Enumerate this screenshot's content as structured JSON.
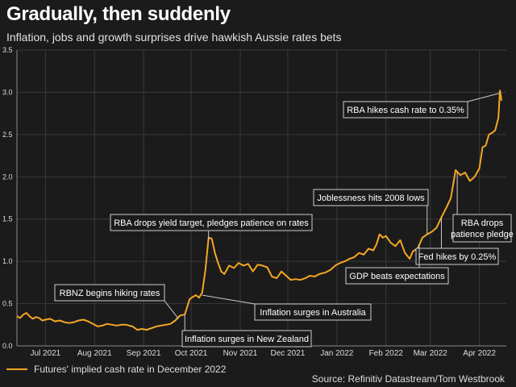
{
  "title": "Gradually, then suddenly",
  "subtitle": "Inflation, jobs and growth surprises drive hawkish Aussie rates bets",
  "legend_label": "Futures' implied cash rate in December 2022",
  "source": "Source: Refinitiv Datastream/Tom Westbrook",
  "colors": {
    "line": "#f5a623",
    "background": "#1b1b1b",
    "text": "#ffffff",
    "grid": "#3a3a3a"
  },
  "chart_data": {
    "type": "line",
    "title": "Gradually, then suddenly",
    "subtitle": "Inflation, jobs and growth surprises drive hawkish Aussie rates bets",
    "xlabel": "",
    "ylabel": "",
    "xlim": [
      "2021-06-20",
      "2022-04-25"
    ],
    "ylim": [
      0,
      3.5
    ],
    "yticks": [
      0.0,
      0.5,
      1.0,
      1.5,
      2.0,
      2.5,
      3.0,
      3.5
    ],
    "ytick_labels": [
      "0.0",
      "0.5",
      "1.0",
      "1.5",
      "2.0",
      "2.5",
      "3.0",
      "3.5"
    ],
    "xticks": [
      {
        "date": "2021-07-08",
        "label": "Jul 2021"
      },
      {
        "date": "2021-08-08",
        "label": "Aug 2021"
      },
      {
        "date": "2021-09-08",
        "label": "Sep 2021"
      },
      {
        "date": "2021-10-08",
        "label": "Oct 2021"
      },
      {
        "date": "2021-11-08",
        "label": "Nov 2021"
      },
      {
        "date": "2021-12-08",
        "label": "Dec 2021"
      },
      {
        "date": "2022-01-08",
        "label": "Jan 2022"
      },
      {
        "date": "2022-02-08",
        "label": "Feb 2022"
      },
      {
        "date": "2022-03-08",
        "label": "Mar 2022"
      },
      {
        "date": "2022-04-08",
        "label": "Apr 2022"
      }
    ],
    "grid": true,
    "legend": "bottom-left",
    "series": [
      {
        "name": "Futures' implied cash rate in December 2022",
        "color": "#f5a623",
        "points": [
          [
            "2021-06-20",
            0.35
          ],
          [
            "2021-06-22",
            0.33
          ],
          [
            "2021-06-24",
            0.37
          ],
          [
            "2021-06-26",
            0.39
          ],
          [
            "2021-06-28",
            0.35
          ],
          [
            "2021-06-30",
            0.32
          ],
          [
            "2021-07-02",
            0.34
          ],
          [
            "2021-07-04",
            0.33
          ],
          [
            "2021-07-06",
            0.3
          ],
          [
            "2021-07-08",
            0.31
          ],
          [
            "2021-07-11",
            0.32
          ],
          [
            "2021-07-14",
            0.29
          ],
          [
            "2021-07-17",
            0.3
          ],
          [
            "2021-07-20",
            0.28
          ],
          [
            "2021-07-23",
            0.27
          ],
          [
            "2021-07-26",
            0.28
          ],
          [
            "2021-07-29",
            0.3
          ],
          [
            "2021-08-01",
            0.31
          ],
          [
            "2021-08-04",
            0.29
          ],
          [
            "2021-08-07",
            0.26
          ],
          [
            "2021-08-10",
            0.23
          ],
          [
            "2021-08-13",
            0.24
          ],
          [
            "2021-08-16",
            0.26
          ],
          [
            "2021-08-19",
            0.25
          ],
          [
            "2021-08-22",
            0.24
          ],
          [
            "2021-08-25",
            0.25
          ],
          [
            "2021-08-28",
            0.25
          ],
          [
            "2021-09-01",
            0.23
          ],
          [
            "2021-09-04",
            0.19
          ],
          [
            "2021-09-07",
            0.2
          ],
          [
            "2021-09-10",
            0.19
          ],
          [
            "2021-09-13",
            0.21
          ],
          [
            "2021-09-16",
            0.23
          ],
          [
            "2021-09-19",
            0.24
          ],
          [
            "2021-09-22",
            0.25
          ],
          [
            "2021-09-25",
            0.26
          ],
          [
            "2021-09-28",
            0.3
          ],
          [
            "2021-10-01",
            0.36
          ],
          [
            "2021-10-04",
            0.37
          ],
          [
            "2021-10-07",
            0.55
          ],
          [
            "2021-10-09",
            0.58
          ],
          [
            "2021-10-11",
            0.6
          ],
          [
            "2021-10-13",
            0.57
          ],
          [
            "2021-10-15",
            0.63
          ],
          [
            "2021-10-17",
            0.9
          ],
          [
            "2021-10-19",
            1.28
          ],
          [
            "2021-10-21",
            1.27
          ],
          [
            "2021-10-23",
            1.1
          ],
          [
            "2021-10-25",
            0.98
          ],
          [
            "2021-10-27",
            0.88
          ],
          [
            "2021-10-29",
            0.85
          ],
          [
            "2021-11-01",
            0.95
          ],
          [
            "2021-11-04",
            0.92
          ],
          [
            "2021-11-07",
            0.98
          ],
          [
            "2021-11-10",
            0.95
          ],
          [
            "2021-11-13",
            0.97
          ],
          [
            "2021-11-16",
            0.88
          ],
          [
            "2021-11-19",
            0.96
          ],
          [
            "2021-11-22",
            0.95
          ],
          [
            "2021-11-25",
            0.93
          ],
          [
            "2021-11-28",
            0.82
          ],
          [
            "2021-12-01",
            0.8
          ],
          [
            "2021-12-04",
            0.88
          ],
          [
            "2021-12-07",
            0.83
          ],
          [
            "2021-12-10",
            0.78
          ],
          [
            "2021-12-13",
            0.79
          ],
          [
            "2021-12-16",
            0.78
          ],
          [
            "2021-12-19",
            0.8
          ],
          [
            "2021-12-22",
            0.83
          ],
          [
            "2021-12-25",
            0.82
          ],
          [
            "2021-12-28",
            0.85
          ],
          [
            "2022-01-01",
            0.87
          ],
          [
            "2022-01-04",
            0.9
          ],
          [
            "2022-01-07",
            0.95
          ],
          [
            "2022-01-10",
            0.98
          ],
          [
            "2022-01-13",
            1.0
          ],
          [
            "2022-01-16",
            1.03
          ],
          [
            "2022-01-19",
            1.05
          ],
          [
            "2022-01-22",
            1.1
          ],
          [
            "2022-01-25",
            1.08
          ],
          [
            "2022-01-28",
            1.15
          ],
          [
            "2022-01-31",
            1.13
          ],
          [
            "2022-02-02",
            1.2
          ],
          [
            "2022-02-04",
            1.32
          ],
          [
            "2022-02-06",
            1.28
          ],
          [
            "2022-02-08",
            1.3
          ],
          [
            "2022-02-11",
            1.22
          ],
          [
            "2022-02-14",
            1.18
          ],
          [
            "2022-02-17",
            1.25
          ],
          [
            "2022-02-20",
            1.1
          ],
          [
            "2022-02-23",
            1.03
          ],
          [
            "2022-02-25",
            1.12
          ],
          [
            "2022-02-28",
            1.15
          ],
          [
            "2022-03-03",
            1.28
          ],
          [
            "2022-03-06",
            1.32
          ],
          [
            "2022-03-09",
            1.35
          ],
          [
            "2022-03-12",
            1.4
          ],
          [
            "2022-03-15",
            1.52
          ],
          [
            "2022-03-18",
            1.63
          ],
          [
            "2022-03-21",
            1.75
          ],
          [
            "2022-03-24",
            2.08
          ],
          [
            "2022-03-27",
            2.02
          ],
          [
            "2022-03-30",
            2.05
          ],
          [
            "2022-04-02",
            1.95
          ],
          [
            "2022-04-05",
            2.0
          ],
          [
            "2022-04-08",
            2.1
          ],
          [
            "2022-04-10",
            2.35
          ],
          [
            "2022-04-12",
            2.37
          ],
          [
            "2022-04-14",
            2.5
          ],
          [
            "2022-04-16",
            2.52
          ],
          [
            "2022-04-18",
            2.55
          ],
          [
            "2022-04-20",
            2.7
          ],
          [
            "2022-04-21",
            3.02
          ],
          [
            "2022-04-22",
            2.9
          ]
        ]
      }
    ],
    "annotations": [
      {
        "text": "RBNZ begins hiking rates",
        "date": "2021-09-30",
        "value": 0.32
      },
      {
        "text": "RBA drops yield target, pledges patience on rates",
        "date": "2021-10-19",
        "value": 1.26
      },
      {
        "text": "Inflation surges in Australia",
        "date": "2021-10-15",
        "value": 0.6
      },
      {
        "text": "Inflation surges in New Zealand",
        "date": "2021-10-04",
        "value": 0.37
      },
      {
        "text": "Joblessness hits 2008 lows",
        "date": "2022-03-06",
        "value": 1.32
      },
      {
        "text": "Fed hikes by 0.25%",
        "date": "2022-03-15",
        "value": 1.52
      },
      {
        "text": "GDP beats expectations",
        "date": "2022-03-01",
        "value": 1.2
      },
      {
        "text": "RBA drops patience pledge",
        "date": "2022-03-25",
        "value": 2.05
      },
      {
        "text": "RBA hikes cash rate to 0.35%",
        "date": "2022-04-21",
        "value": 2.99
      }
    ]
  }
}
